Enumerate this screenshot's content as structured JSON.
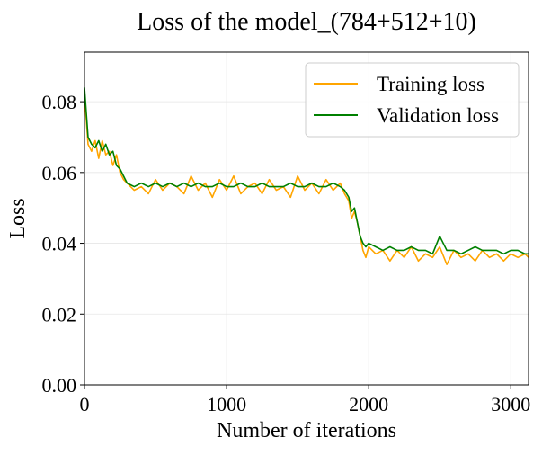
{
  "chart_data": {
    "type": "line",
    "title": "Loss of the model_(784+512+10)",
    "xlabel": "Number of iterations",
    "ylabel": "Loss",
    "xlim": [
      0,
      3125
    ],
    "ylim": [
      0.0,
      0.094
    ],
    "x_ticks": [
      0,
      1000,
      2000,
      3000
    ],
    "x_tick_labels": [
      "0",
      "1000",
      "2000",
      "3000"
    ],
    "y_ticks": [
      0.0,
      0.02,
      0.04,
      0.06,
      0.08
    ],
    "y_tick_labels": [
      "0.00",
      "0.02",
      "0.04",
      "0.06",
      "0.08"
    ],
    "grid": true,
    "legend_position": "upper right",
    "series": [
      {
        "name": "Training loss",
        "color": "#FFA500",
        "x": [
          0,
          25,
          50,
          75,
          100,
          125,
          150,
          175,
          200,
          225,
          250,
          275,
          300,
          350,
          400,
          450,
          500,
          550,
          600,
          650,
          700,
          750,
          800,
          850,
          900,
          950,
          1000,
          1050,
          1100,
          1150,
          1200,
          1250,
          1300,
          1350,
          1400,
          1450,
          1500,
          1550,
          1600,
          1650,
          1700,
          1750,
          1800,
          1830,
          1860,
          1880,
          1900,
          1920,
          1940,
          1960,
          1980,
          2000,
          2050,
          2100,
          2150,
          2200,
          2250,
          2300,
          2350,
          2400,
          2450,
          2500,
          2550,
          2600,
          2650,
          2700,
          2750,
          2800,
          2850,
          2900,
          2950,
          3000,
          3050,
          3100,
          3125
        ],
        "y": [
          0.082,
          0.068,
          0.066,
          0.069,
          0.064,
          0.069,
          0.065,
          0.066,
          0.062,
          0.065,
          0.06,
          0.058,
          0.057,
          0.055,
          0.056,
          0.054,
          0.058,
          0.055,
          0.057,
          0.056,
          0.054,
          0.059,
          0.055,
          0.057,
          0.053,
          0.058,
          0.055,
          0.059,
          0.054,
          0.056,
          0.057,
          0.054,
          0.058,
          0.055,
          0.056,
          0.053,
          0.059,
          0.055,
          0.057,
          0.054,
          0.058,
          0.055,
          0.057,
          0.054,
          0.052,
          0.047,
          0.049,
          0.046,
          0.042,
          0.038,
          0.036,
          0.039,
          0.037,
          0.038,
          0.035,
          0.038,
          0.036,
          0.039,
          0.035,
          0.037,
          0.036,
          0.039,
          0.034,
          0.038,
          0.036,
          0.037,
          0.035,
          0.038,
          0.036,
          0.037,
          0.035,
          0.037,
          0.036,
          0.037,
          0.036
        ]
      },
      {
        "name": "Validation loss",
        "color": "#008000",
        "x": [
          0,
          25,
          50,
          75,
          100,
          125,
          150,
          175,
          200,
          225,
          250,
          275,
          300,
          350,
          400,
          450,
          500,
          550,
          600,
          650,
          700,
          750,
          800,
          850,
          900,
          950,
          1000,
          1050,
          1100,
          1150,
          1200,
          1250,
          1300,
          1350,
          1400,
          1450,
          1500,
          1550,
          1600,
          1650,
          1700,
          1750,
          1800,
          1830,
          1860,
          1880,
          1900,
          1920,
          1940,
          1960,
          1980,
          2000,
          2050,
          2100,
          2150,
          2200,
          2250,
          2300,
          2350,
          2400,
          2450,
          2500,
          2550,
          2600,
          2650,
          2700,
          2750,
          2800,
          2850,
          2900,
          2950,
          3000,
          3050,
          3100,
          3125
        ],
        "y": [
          0.084,
          0.07,
          0.068,
          0.067,
          0.069,
          0.066,
          0.068,
          0.065,
          0.066,
          0.062,
          0.061,
          0.059,
          0.057,
          0.056,
          0.057,
          0.056,
          0.057,
          0.056,
          0.057,
          0.056,
          0.057,
          0.056,
          0.057,
          0.056,
          0.056,
          0.057,
          0.056,
          0.056,
          0.057,
          0.056,
          0.056,
          0.057,
          0.056,
          0.056,
          0.056,
          0.057,
          0.056,
          0.056,
          0.057,
          0.056,
          0.056,
          0.057,
          0.056,
          0.055,
          0.053,
          0.049,
          0.05,
          0.046,
          0.042,
          0.04,
          0.039,
          0.04,
          0.039,
          0.038,
          0.039,
          0.038,
          0.038,
          0.039,
          0.038,
          0.038,
          0.037,
          0.042,
          0.038,
          0.038,
          0.037,
          0.038,
          0.039,
          0.038,
          0.038,
          0.038,
          0.037,
          0.038,
          0.038,
          0.037,
          0.037
        ]
      }
    ]
  }
}
